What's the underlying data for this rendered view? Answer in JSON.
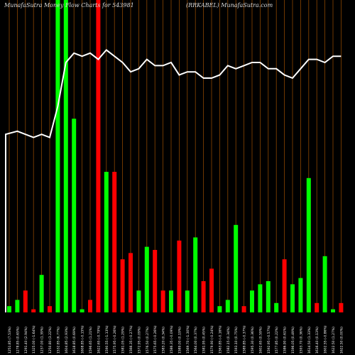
{
  "header": {
    "left": "MunafaSutra  Money Flow  Charts for 543981",
    "right": "(RRKABEL) MunafaSutra.com"
  },
  "colors": {
    "background": "#000000",
    "gridline": "#8b4500",
    "up_bar": "#00ff00",
    "down_bar": "#ff0000",
    "price_line": "#ffffff",
    "text": "#ffffff"
  },
  "chart_data": {
    "type": "bar",
    "title": "MunafaSutra  Money Flow  Charts for 543981",
    "subtitle": "(RRKABEL) MunafaSutra.com",
    "ylim": [
      0,
      100
    ],
    "grid": true,
    "categories": [
      "1251.85 (7.53%)",
      "1278.85 (0.65%)",
      "1291.40 (2.94%)",
      "1325.00 (-1.64%)",
      "1237.00 (1.39%)",
      "1250.80 (3.22%)",
      "1532.85 (6.77%)",
      "1604.85 (2.93%)",
      "1618.85 (0.69%)",
      "1608.85 (-0.15%)",
      "1596.65 (1.21%)",
      "1622.65 (-0.79%)",
      "1590.55 (-1.13%)",
      "1575.95 (-0.26%)",
      "1581.05 (1.29%)",
      "1566.35 (-0.27%)",
      "1572.95 (0.09%)",
      "1576.50 (0.27%)",
      "1575.65 (-0.26%)",
      "1583.20 (0.34%)",
      "1586.35 (-0.09%)",
      "1589.00 (0.19%)",
      "1569.70 (-1.30%)",
      "1564.00 (0.37%)",
      "1581.95 (0.45%)",
      "1579.90 (-0.24%)",
      "1563.85 (-0.16%)",
      "1582.15 (0.34%)",
      "1593.10 (0.75%)",
      "1589.85 (-0.37%)",
      "1595.30 (0.36%)",
      "1602.65 (0.59%)",
      "1592.95 (-0.57%)",
      "1577.85 (0.22%)",
      "1586.90 (0.61%)",
      "1596.05 (0.49%)",
      "1593.70 (0.36%)",
      "1614.50 (1.33%)",
      "1616.40 (0.13%)",
      "1602.55 (-0.86%)",
      "1622.50 (1.27%)",
      "1622.50 (0.00%)"
    ],
    "series": [
      {
        "values": [
          2,
          4,
          7,
          1,
          12,
          2,
          100,
          100,
          62,
          1,
          4,
          100,
          45,
          45,
          17,
          19,
          7,
          21,
          20,
          7,
          7,
          23,
          7,
          24,
          10,
          14,
          2,
          4,
          28,
          2,
          7,
          9,
          10,
          3,
          17,
          9,
          11,
          43,
          3,
          18,
          1,
          3
        ]
      }
    ],
    "direction": [
      "up",
      "up",
      "down",
      "down",
      "up",
      "down",
      "up",
      "up",
      "up",
      "up",
      "down",
      "down",
      "up",
      "down",
      "down",
      "down",
      "up",
      "up",
      "down",
      "down",
      "up",
      "down",
      "up",
      "up",
      "down",
      "down",
      "up",
      "up",
      "up",
      "down",
      "up",
      "up",
      "up",
      "up",
      "down",
      "up",
      "up",
      "up",
      "down",
      "up",
      "up",
      "down"
    ],
    "price_line": [
      57,
      58,
      57,
      56,
      57,
      56,
      66,
      80,
      83,
      82,
      83,
      81,
      84,
      82,
      80,
      77,
      78,
      81,
      79,
      79,
      80,
      76,
      77,
      77,
      75,
      75,
      76,
      79,
      78,
      79,
      80,
      80,
      78,
      78,
      76,
      75,
      78,
      81,
      81,
      80,
      82,
      82
    ]
  }
}
